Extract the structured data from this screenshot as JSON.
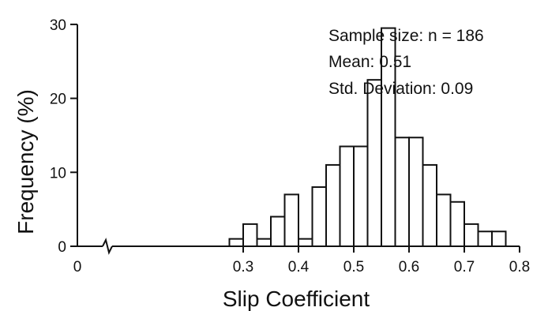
{
  "chart_data": {
    "type": "bar",
    "title": "",
    "xlabel": "Slip Coefficient",
    "ylabel": "Frequency (%)",
    "xlim": [
      0,
      0.8
    ],
    "ylim": [
      0,
      30
    ],
    "x_ticks": [
      "0",
      "0.3",
      "0.4",
      "0.5",
      "0.6",
      "0.7",
      "0.8"
    ],
    "y_ticks": [
      "0",
      "10",
      "20",
      "30"
    ],
    "x_axis_break": true,
    "grid": false,
    "bin_width": 0.025,
    "bin_starts": [
      0.275,
      0.3,
      0.325,
      0.35,
      0.375,
      0.4,
      0.425,
      0.45,
      0.475,
      0.5,
      0.525,
      0.55,
      0.575,
      0.6,
      0.625,
      0.65,
      0.675,
      0.7,
      0.725,
      0.75
    ],
    "values": [
      1,
      3,
      1,
      4,
      7,
      1,
      8,
      11,
      13.5,
      13.5,
      22.5,
      29.5,
      14.7,
      14.7,
      11,
      7,
      6,
      3,
      2,
      2
    ],
    "annotations": [
      "Sample size: n = 186",
      "Mean: 0.51",
      "Std. Deviation: 0.09"
    ]
  },
  "colors": {
    "bar_fill": "#ffffff",
    "bar_stroke": "#111111",
    "axis": "#111111"
  }
}
